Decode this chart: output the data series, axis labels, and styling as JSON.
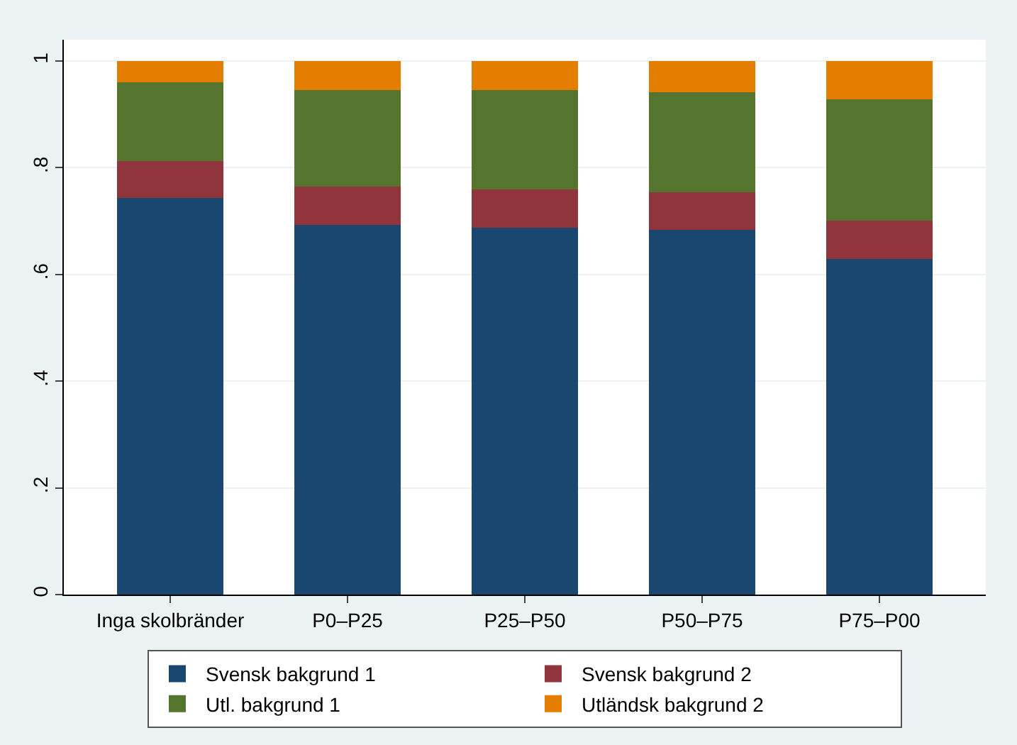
{
  "chart_data": {
    "type": "bar",
    "stacked": true,
    "categories": [
      "Inga skolbränder",
      "P0–P25",
      "P25–P50",
      "P50–P75",
      "P75–P00"
    ],
    "series": [
      {
        "name": "Svensk bakgrund 1",
        "color": "#1a476f",
        "values": [
          0.743,
          0.693,
          0.688,
          0.684,
          0.629
        ]
      },
      {
        "name": "Svensk bakgrund 2",
        "color": "#90353b",
        "values": [
          0.07,
          0.072,
          0.072,
          0.07,
          0.072
        ]
      },
      {
        "name": "Utl. bakgrund 1",
        "color": "#55752f",
        "values": [
          0.147,
          0.18,
          0.185,
          0.188,
          0.227
        ]
      },
      {
        "name": "Utländsk bakgrund 2",
        "color": "#e37e00",
        "values": [
          0.04,
          0.055,
          0.055,
          0.058,
          0.072
        ]
      }
    ],
    "ylim": [
      0,
      1.04
    ],
    "yticks": [
      0,
      {
        "value": 0.2,
        "label": ".2"
      },
      {
        "value": 0.4,
        "label": ".4"
      },
      {
        "value": 0.6,
        "label": ".6"
      },
      {
        "value": 0.8,
        "label": ".8"
      },
      1
    ],
    "grid": "y",
    "legend": "bottom"
  }
}
